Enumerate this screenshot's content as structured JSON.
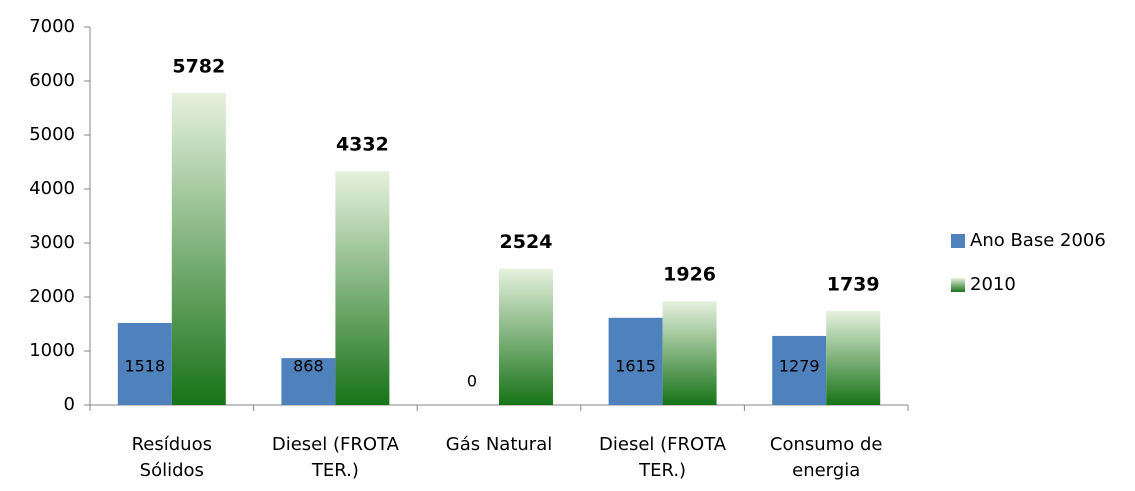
{
  "chart_data": {
    "type": "bar",
    "categories": [
      "Resíduos Sólidos",
      "Diesel (FROTA TER.)",
      "Gás Natural",
      "Diesel (FROTA TER.)",
      "Consumo de energia"
    ],
    "series": [
      {
        "name": "Ano Base 2006",
        "color": "#4f81bd",
        "values": [
          1518,
          868,
          0,
          1615,
          1279
        ]
      },
      {
        "name": "2010",
        "color": "#4e9a2e",
        "gradient": [
          "#e6f1de",
          "#187318"
        ],
        "values": [
          5782,
          4332,
          2524,
          1926,
          1739
        ]
      }
    ],
    "ylim": [
      0,
      7000
    ],
    "yticks": [
      0,
      1000,
      2000,
      3000,
      4000,
      5000,
      6000,
      7000
    ],
    "grid": false,
    "legend": "right"
  }
}
